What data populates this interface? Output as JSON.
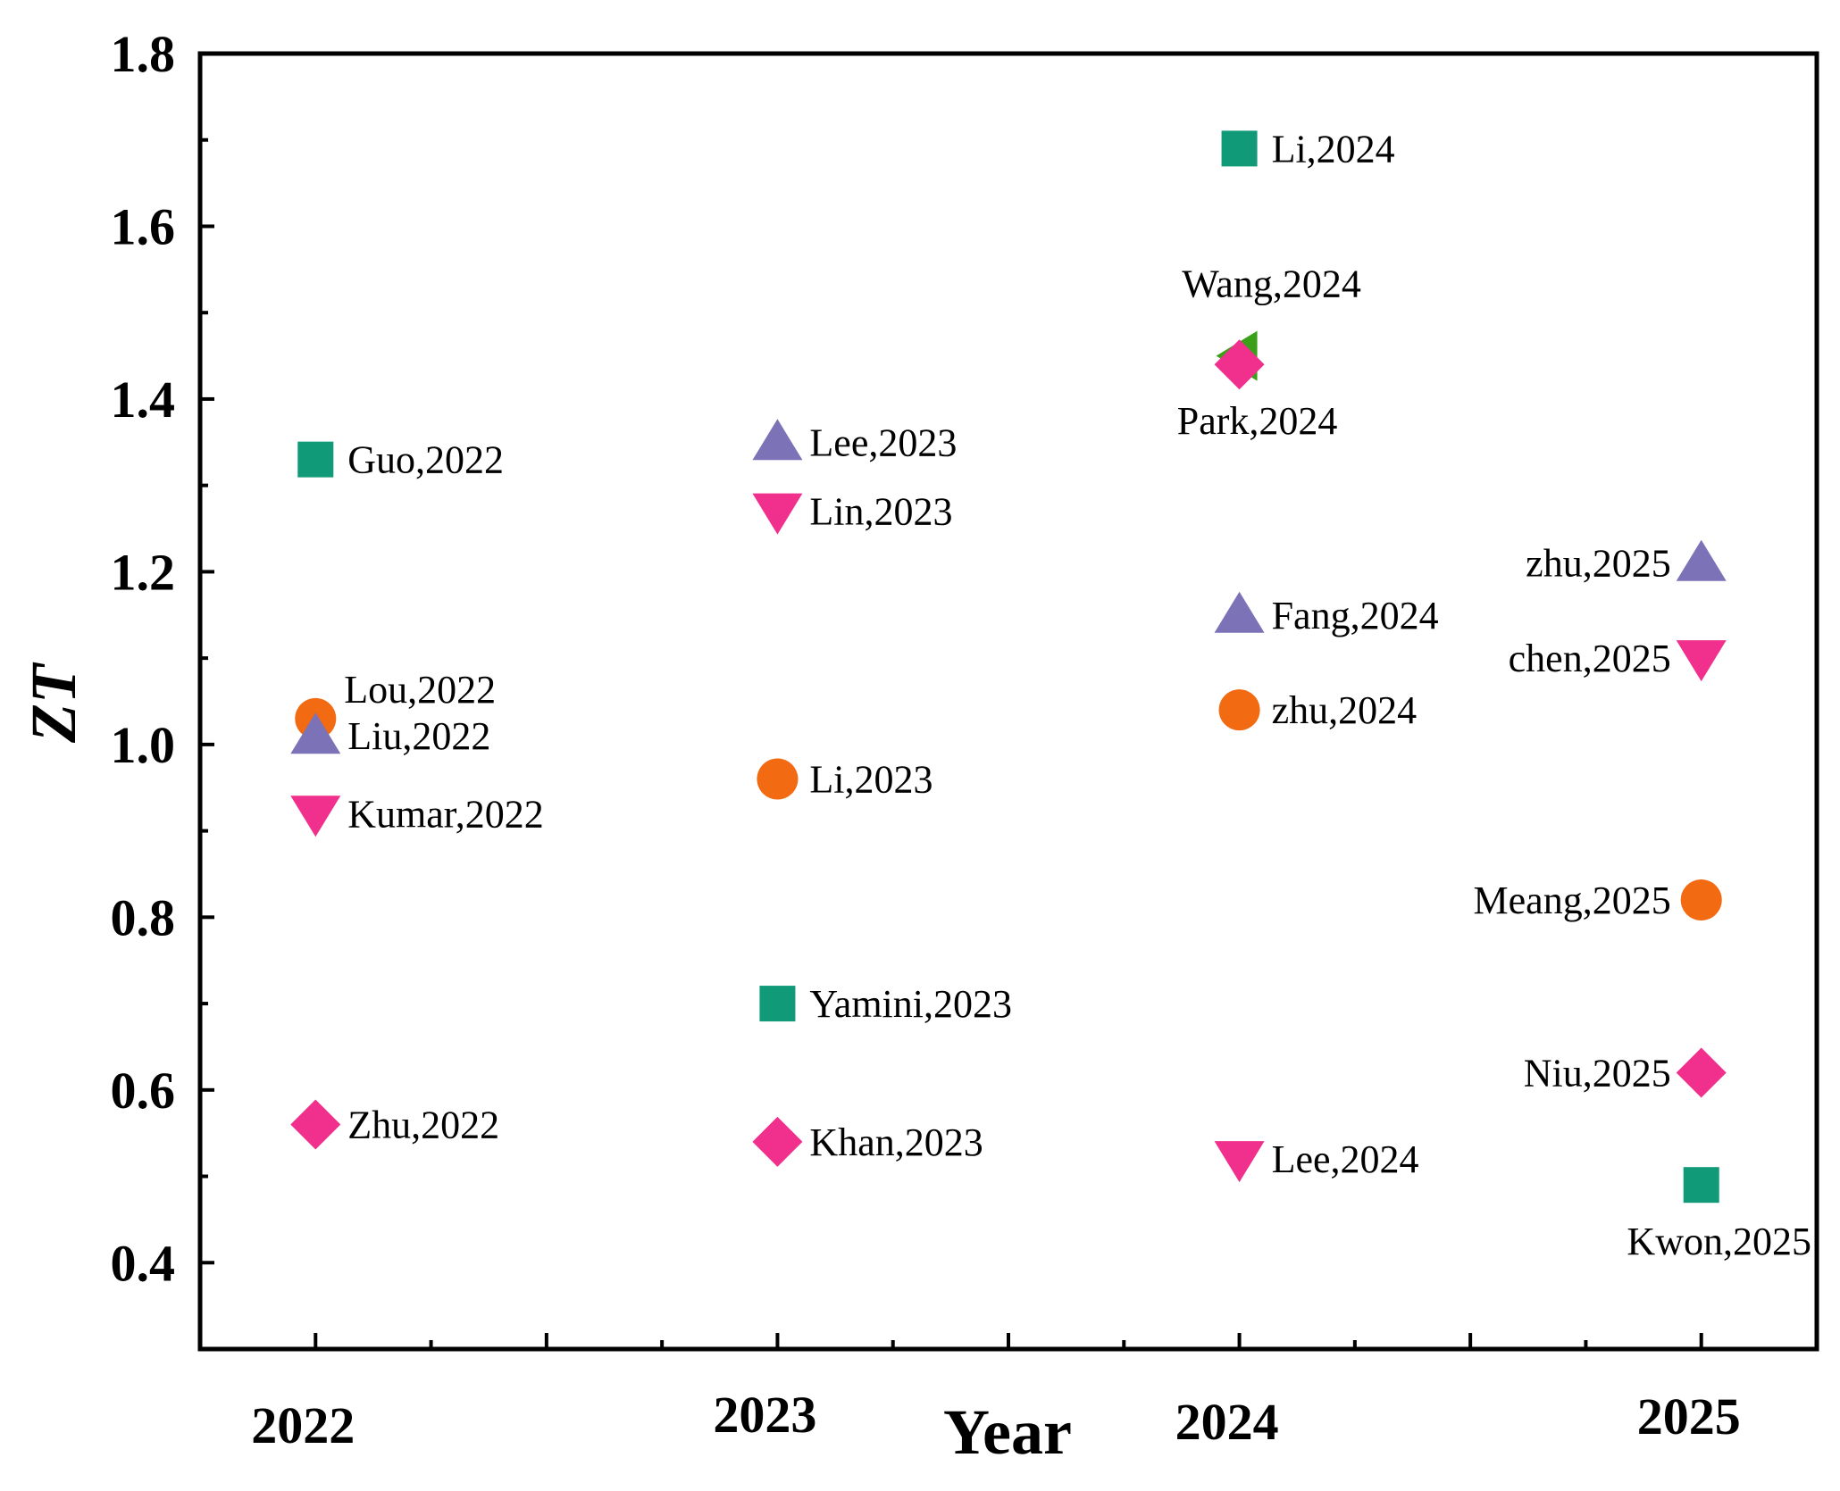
{
  "chart_data": {
    "type": "scatter",
    "title": "",
    "xlabel": "Year",
    "ylabel": "ZT",
    "xlim": [
      2021.75,
      2025.25
    ],
    "ylim": [
      0.3,
      1.8
    ],
    "x_ticks": [
      "2022",
      "2023",
      "2024",
      "2025"
    ],
    "y_ticks": [
      "0.4",
      "0.6",
      "0.8",
      "1.0",
      "1.2",
      "1.4",
      "1.6",
      "1.8"
    ],
    "grid": false,
    "legend": "none",
    "colors": {
      "square": "#109a78",
      "circle": "#f26a12",
      "triangle-up": "#7b72b8",
      "triangle-down": "#f0308c",
      "diamond": "#f0308c",
      "triangle-left": "#3aa019"
    },
    "points": [
      {
        "label": "Guo,2022",
        "x": 2022,
        "y": 1.33,
        "marker": "square",
        "label_pos": "right"
      },
      {
        "label": "Lou,2022",
        "x": 2022,
        "y": 1.03,
        "marker": "circle",
        "label_pos": "upper-right"
      },
      {
        "label": "Liu,2022",
        "x": 2022,
        "y": 1.01,
        "marker": "triangle-up",
        "label_pos": "right"
      },
      {
        "label": "Kumar,2022",
        "x": 2022,
        "y": 0.92,
        "marker": "triangle-down",
        "label_pos": "right"
      },
      {
        "label": "Zhu,2022",
        "x": 2022,
        "y": 0.56,
        "marker": "diamond",
        "label_pos": "right"
      },
      {
        "label": "Lee,2023",
        "x": 2023,
        "y": 1.35,
        "marker": "triangle-up",
        "label_pos": "right"
      },
      {
        "label": "Lin,2023",
        "x": 2023,
        "y": 1.27,
        "marker": "triangle-down",
        "label_pos": "right"
      },
      {
        "label": "Li,2023",
        "x": 2023,
        "y": 0.96,
        "marker": "circle",
        "label_pos": "right"
      },
      {
        "label": "Yamini,2023",
        "x": 2023,
        "y": 0.7,
        "marker": "square",
        "label_pos": "right"
      },
      {
        "label": "Khan,2023",
        "x": 2023,
        "y": 0.54,
        "marker": "diamond",
        "label_pos": "right"
      },
      {
        "label": "Li,2024",
        "x": 2024,
        "y": 1.69,
        "marker": "square",
        "label_pos": "right"
      },
      {
        "label": "Wang,2024",
        "x": 2024,
        "y": 1.45,
        "marker": "triangle-left",
        "label_pos": "above"
      },
      {
        "label": "Park,2024",
        "x": 2024,
        "y": 1.44,
        "marker": "diamond",
        "label_pos": "below"
      },
      {
        "label": "Fang,2024",
        "x": 2024,
        "y": 1.15,
        "marker": "triangle-up",
        "label_pos": "right"
      },
      {
        "label": "zhu,2024",
        "x": 2024,
        "y": 1.04,
        "marker": "circle",
        "label_pos": "right"
      },
      {
        "label": "Lee,2024",
        "x": 2024,
        "y": 0.52,
        "marker": "triangle-down",
        "label_pos": "right"
      },
      {
        "label": "zhu,2025",
        "x": 2025,
        "y": 1.21,
        "marker": "triangle-up",
        "label_pos": "left"
      },
      {
        "label": "chen,2025",
        "x": 2025,
        "y": 1.1,
        "marker": "triangle-down",
        "label_pos": "left"
      },
      {
        "label": "Meang,2025",
        "x": 2025,
        "y": 0.82,
        "marker": "circle",
        "label_pos": "left"
      },
      {
        "label": "Niu,2025",
        "x": 2025,
        "y": 0.62,
        "marker": "diamond",
        "label_pos": "left"
      },
      {
        "label": "Kwon,2025",
        "x": 2025,
        "y": 0.49,
        "marker": "square",
        "label_pos": "below"
      }
    ]
  }
}
